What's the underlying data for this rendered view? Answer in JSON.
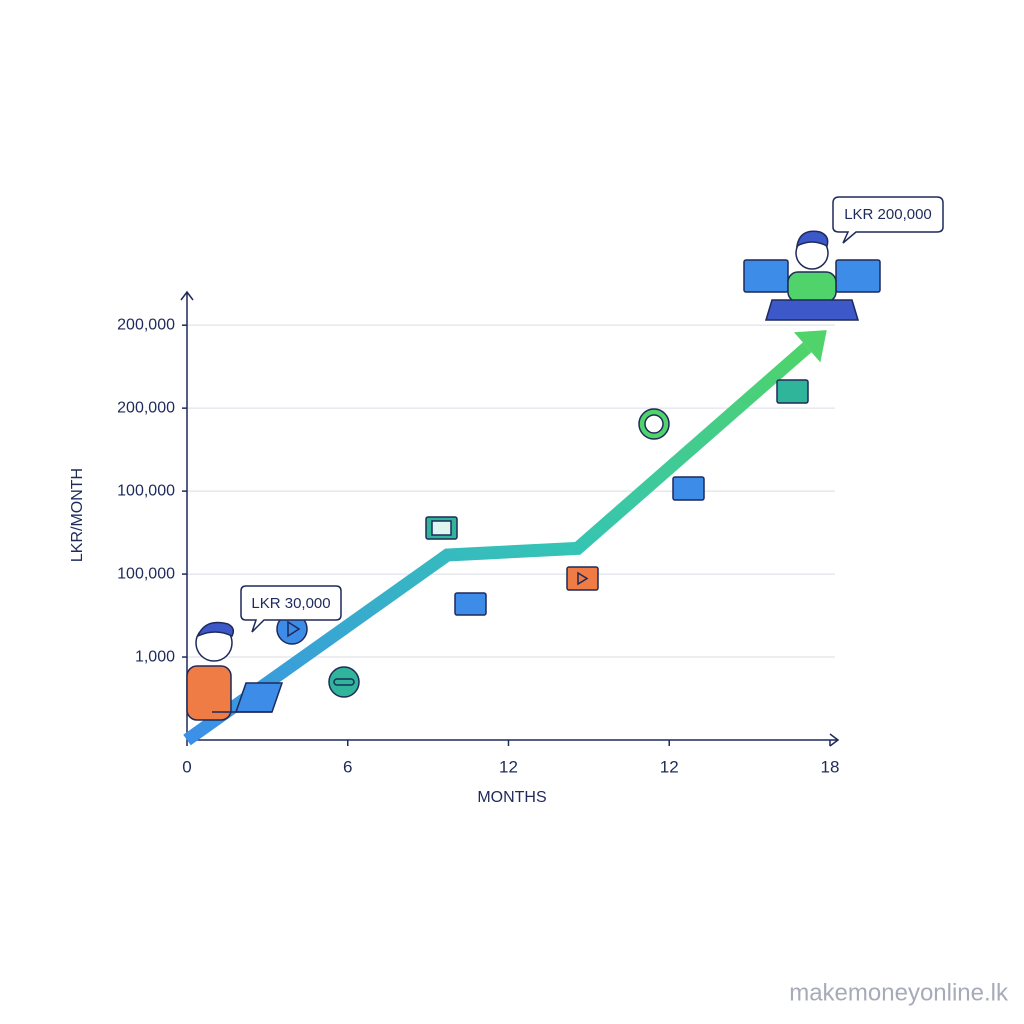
{
  "chart_data": {
    "type": "line",
    "x_label": "MONTHS",
    "y_label": "LKR/MONTH",
    "xlim": [
      0,
      4.05
    ],
    "ylim": [
      0,
      5.4
    ],
    "xticks": [
      {
        "value": 0,
        "label": "0"
      },
      {
        "value": 1,
        "label": "6"
      },
      {
        "value": 2,
        "label": "12"
      },
      {
        "value": 3,
        "label": "12"
      },
      {
        "value": 4,
        "label": "18"
      }
    ],
    "yticks": [
      {
        "value": 1,
        "label": "1,000"
      },
      {
        "value": 2,
        "label": "100,000"
      },
      {
        "value": 3,
        "label": "100,000"
      },
      {
        "value": 4,
        "label": "200,000"
      },
      {
        "value": 5,
        "label": "200,000"
      }
    ],
    "grid": true,
    "series": [
      {
        "x": [
          0,
          1.62,
          2.43,
          3.98
        ],
        "values": [
          0,
          2.23,
          2.31,
          4.94
        ]
      }
    ],
    "annotations": [
      "LKR 30,000",
      "LKR 200,000"
    ]
  },
  "watermark": "makemoneyonline.lk"
}
